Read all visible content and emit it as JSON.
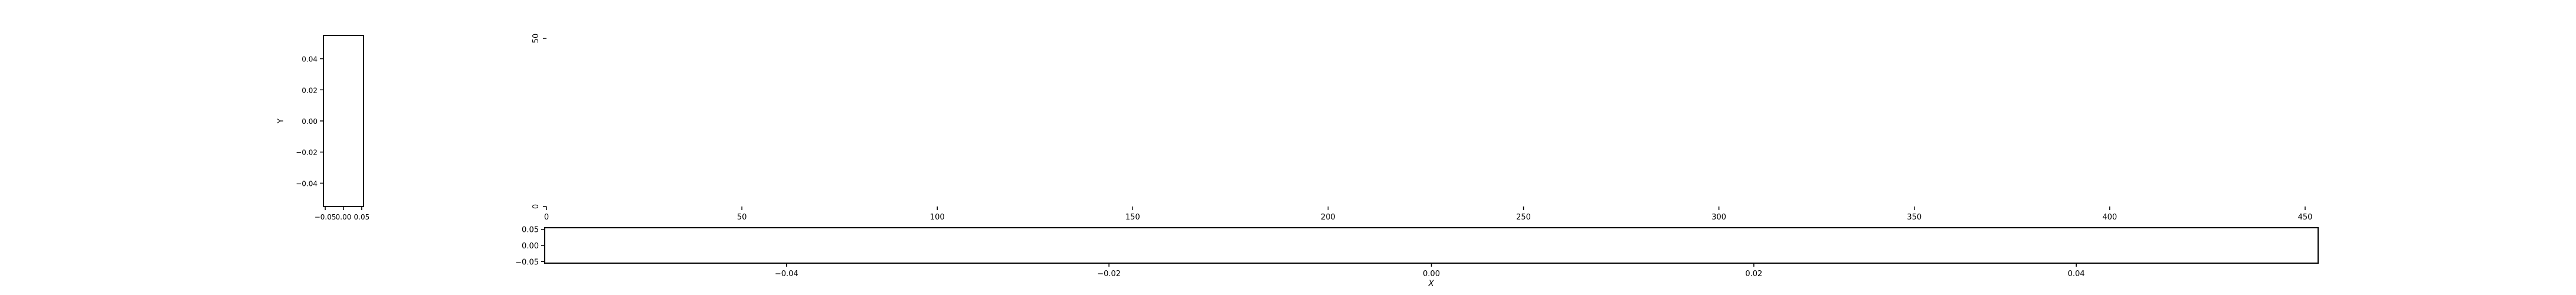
{
  "figure": {
    "background": "#ffffff",
    "axis_color": "#000000"
  },
  "chart_data": [
    {
      "panel": "left",
      "type": "scatter",
      "xlabel": "",
      "ylabel": "Y",
      "xlim": [
        -0.055,
        0.055
      ],
      "ylim": [
        -0.055,
        0.055
      ],
      "x_ticks": [
        -0.05,
        0.0,
        0.05
      ],
      "x_tick_labels": [
        "−0.05",
        "0.00",
        "0.05"
      ],
      "y_ticks": [
        -0.04,
        -0.02,
        0.0,
        0.02,
        0.04
      ],
      "y_tick_labels": [
        "−0.04",
        "−0.02",
        "0.00",
        "0.02",
        "0.04"
      ],
      "series": [],
      "grid": false
    },
    {
      "panel": "main",
      "type": "scatter",
      "xlabel": "",
      "ylabel": "",
      "xlim": [
        0,
        450
      ],
      "ylim": [
        0,
        50
      ],
      "x_ticks": [
        0,
        50,
        100,
        150,
        200,
        250,
        300,
        350,
        400,
        450
      ],
      "x_tick_labels": [
        "0",
        "50",
        "100",
        "150",
        "200",
        "250",
        "300",
        "350",
        "400",
        "450"
      ],
      "y_ticks": [
        0,
        50
      ],
      "y_tick_labels": [
        "0",
        "50"
      ],
      "series": [],
      "grid": false
    },
    {
      "panel": "bottom",
      "type": "scatter",
      "xlabel": "X",
      "ylabel": "",
      "xlim": [
        -0.055,
        0.055
      ],
      "ylim": [
        -0.055,
        0.055
      ],
      "x_ticks": [
        -0.04,
        -0.02,
        0.0,
        0.02,
        0.04
      ],
      "x_tick_labels": [
        "−0.04",
        "−0.02",
        "0.00",
        "0.02",
        "0.04"
      ],
      "y_ticks": [
        -0.05,
        0.0,
        0.05
      ],
      "y_tick_labels": [
        "−0.05",
        "0.00",
        "0.05"
      ],
      "series": [],
      "grid": false
    }
  ]
}
